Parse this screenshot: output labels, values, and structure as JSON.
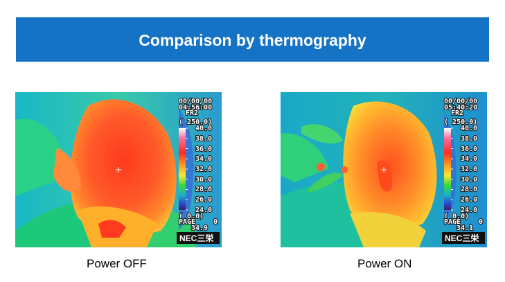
{
  "banner": {
    "title": "Comparison by thermography"
  },
  "images": [
    {
      "id": "off",
      "date": "00/00/00",
      "time": "04:56:00",
      "frame": "FR2",
      "range": "( 250.0)",
      "scale": [
        "40.0",
        "38.0",
        "36.0",
        "34.0",
        "32.0",
        "30.0",
        "28.0",
        "26.0",
        "24.0"
      ],
      "range_low": "( 0.0)",
      "page_label": "PAGE",
      "page_number": "0",
      "spot_temp": "34.9",
      "logo": "NEC三栄",
      "caption": "Power OFF"
    },
    {
      "id": "on",
      "date": "00/00/00",
      "time": "05:40:20",
      "frame": "FR2",
      "range": "( 250.0)",
      "scale": [
        "40.0",
        "38.0",
        "36.0",
        "34.0",
        "32.0",
        "30.0",
        "28.0",
        "26.0",
        "24.0"
      ],
      "range_low": "( 0.0)",
      "page_label": "PAGE",
      "page_number": "0",
      "spot_temp": "34.1",
      "logo": "NEC三栄",
      "caption": "Power ON"
    }
  ]
}
